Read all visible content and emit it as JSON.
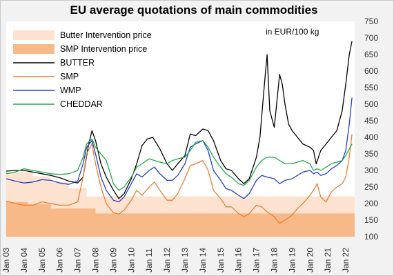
{
  "chart_data": {
    "type": "line",
    "title": "EU average quotations of main commodities",
    "unit_note": "in EUR/100 kg",
    "ylim": [
      100,
      750
    ],
    "yticks": [
      100,
      150,
      200,
      250,
      300,
      350,
      400,
      450,
      500,
      550,
      600,
      650,
      700,
      750
    ],
    "xlim": [
      2003.0,
      2022.5
    ],
    "xticks": [
      {
        "label": "Jan 03",
        "x": 2003
      },
      {
        "label": "Jan 04",
        "x": 2004
      },
      {
        "label": "Jan 05",
        "x": 2005
      },
      {
        "label": "Jan 06",
        "x": 2006
      },
      {
        "label": "Jan 07",
        "x": 2007
      },
      {
        "label": "Jan 08",
        "x": 2008
      },
      {
        "label": "Jan 09",
        "x": 2009
      },
      {
        "label": "Jan 10",
        "x": 2010
      },
      {
        "label": "Jan 11",
        "x": 2011
      },
      {
        "label": "Jan 12",
        "x": 2012
      },
      {
        "label": "Jan 13",
        "x": 2013
      },
      {
        "label": "Jan 14",
        "x": 2014
      },
      {
        "label": "Jan 15",
        "x": 2015
      },
      {
        "label": "Jan 16",
        "x": 2016
      },
      {
        "label": "Jan 17",
        "x": 2017
      },
      {
        "label": "Jan 18",
        "x": 2018
      },
      {
        "label": "Jan 19",
        "x": 2019
      },
      {
        "label": "Jan 20",
        "x": 2020
      },
      {
        "label": "Jan 21",
        "x": 2021
      },
      {
        "label": "Jan 22",
        "x": 2022
      }
    ],
    "legend": [
      {
        "key": "butter_int",
        "label": "Butter Intervention price",
        "kind": "area",
        "color": "#fde3cf"
      },
      {
        "key": "smp_int",
        "label": "SMP Intervention price",
        "kind": "area",
        "color": "#f8b988"
      },
      {
        "key": "butter",
        "label": "BUTTER",
        "kind": "line",
        "color": "#000000"
      },
      {
        "key": "smp",
        "label": "SMP",
        "kind": "line",
        "color": "#ed7d31"
      },
      {
        "key": "wmp",
        "label": "WMP",
        "kind": "line",
        "color": "#1f3fd0"
      },
      {
        "key": "cheddar",
        "label": "CHEDDAR",
        "kind": "line",
        "color": "#22aa44"
      }
    ],
    "areas": [
      {
        "key": "butter_int",
        "color": "#fde3cf",
        "x": [
          2003.0,
          2004.5,
          2004.5,
          2005.5,
          2005.5,
          2006.5,
          2006.5,
          2007.5,
          2007.5,
          2022.5
        ],
        "y": [
          295,
          295,
          282,
          282,
          264,
          264,
          246,
          246,
          222,
          222
        ]
      },
      {
        "key": "smp_int",
        "color": "#f8b988",
        "x": [
          2003.0,
          2004.2,
          2004.2,
          2005.5,
          2005.5,
          2008.0,
          2008.0,
          2022.5
        ],
        "y": [
          205,
          205,
          198,
          198,
          185,
          185,
          170,
          170
        ]
      }
    ],
    "series": [
      {
        "key": "butter",
        "color": "#000000",
        "x": [
          2003.0,
          2003.5,
          2004.0,
          2004.5,
          2005.0,
          2005.5,
          2006.0,
          2006.5,
          2007.0,
          2007.3,
          2007.6,
          2007.8,
          2008.0,
          2008.3,
          2008.6,
          2009.0,
          2009.3,
          2009.6,
          2010.0,
          2010.3,
          2010.6,
          2010.9,
          2011.2,
          2011.6,
          2012.0,
          2012.3,
          2012.6,
          2013.0,
          2013.3,
          2013.6,
          2014.0,
          2014.3,
          2014.6,
          2015.0,
          2015.3,
          2015.6,
          2016.0,
          2016.3,
          2016.6,
          2017.0,
          2017.2,
          2017.45,
          2017.6,
          2017.75,
          2018.0,
          2018.3,
          2018.45,
          2018.6,
          2018.8,
          2019.0,
          2019.3,
          2019.6,
          2020.0,
          2020.2,
          2020.35,
          2020.6,
          2020.9,
          2021.2,
          2021.5,
          2021.8,
          2022.0,
          2022.2,
          2022.35
        ],
        "y": [
          298,
          300,
          300,
          295,
          290,
          285,
          278,
          268,
          262,
          280,
          375,
          420,
          390,
          320,
          280,
          240,
          215,
          230,
          275,
          320,
          375,
          395,
          400,
          365,
          320,
          300,
          320,
          345,
          410,
          405,
          425,
          420,
          390,
          330,
          305,
          300,
          275,
          260,
          275,
          340,
          400,
          560,
          650,
          480,
          430,
          590,
          560,
          500,
          440,
          420,
          400,
          380,
          370,
          360,
          320,
          360,
          380,
          400,
          420,
          480,
          560,
          650,
          690
        ]
      },
      {
        "key": "smp",
        "color": "#ed7d31",
        "x": [
          2003.0,
          2003.5,
          2004.0,
          2004.5,
          2005.0,
          2005.5,
          2006.0,
          2006.5,
          2007.0,
          2007.3,
          2007.5,
          2007.8,
          2008.0,
          2008.3,
          2008.6,
          2009.0,
          2009.3,
          2009.6,
          2010.0,
          2010.3,
          2010.6,
          2011.0,
          2011.3,
          2011.6,
          2012.0,
          2012.3,
          2012.6,
          2013.0,
          2013.3,
          2013.6,
          2014.0,
          2014.3,
          2014.6,
          2015.0,
          2015.3,
          2015.6,
          2016.0,
          2016.3,
          2016.6,
          2017.0,
          2017.3,
          2017.6,
          2018.0,
          2018.3,
          2018.6,
          2019.0,
          2019.3,
          2019.6,
          2020.0,
          2020.2,
          2020.4,
          2020.6,
          2020.9,
          2021.2,
          2021.5,
          2021.8,
          2022.0,
          2022.2,
          2022.35
        ],
        "y": [
          208,
          200,
          195,
          195,
          205,
          200,
          195,
          195,
          205,
          280,
          350,
          380,
          320,
          250,
          200,
          172,
          168,
          180,
          210,
          240,
          225,
          250,
          265,
          240,
          210,
          210,
          230,
          275,
          315,
          320,
          330,
          300,
          240,
          215,
          190,
          190,
          170,
          160,
          170,
          195,
          190,
          175,
          160,
          140,
          150,
          165,
          185,
          200,
          225,
          240,
          260,
          220,
          205,
          235,
          250,
          260,
          280,
          340,
          410
        ]
      },
      {
        "key": "wmp",
        "color": "#1f3fd0",
        "x": [
          2003.0,
          2003.5,
          2004.0,
          2004.5,
          2005.0,
          2005.5,
          2006.0,
          2006.5,
          2007.0,
          2007.3,
          2007.5,
          2007.8,
          2008.0,
          2008.3,
          2008.6,
          2009.0,
          2009.3,
          2009.6,
          2010.0,
          2010.3,
          2010.6,
          2011.0,
          2011.3,
          2011.6,
          2012.0,
          2012.3,
          2012.6,
          2013.0,
          2013.3,
          2013.6,
          2014.0,
          2014.3,
          2014.6,
          2015.0,
          2015.3,
          2015.6,
          2016.0,
          2016.3,
          2016.6,
          2017.0,
          2017.3,
          2017.6,
          2018.0,
          2018.3,
          2018.6,
          2019.0,
          2019.3,
          2019.6,
          2020.0,
          2020.2,
          2020.4,
          2020.6,
          2020.9,
          2021.2,
          2021.5,
          2021.8,
          2022.0,
          2022.2,
          2022.35
        ],
        "y": [
          275,
          268,
          262,
          265,
          272,
          270,
          262,
          258,
          268,
          320,
          370,
          390,
          350,
          280,
          240,
          210,
          205,
          220,
          260,
          290,
          280,
          300,
          310,
          290,
          270,
          270,
          285,
          320,
          370,
          380,
          390,
          360,
          300,
          270,
          245,
          240,
          225,
          215,
          230,
          270,
          285,
          280,
          275,
          260,
          270,
          275,
          285,
          295,
          300,
          290,
          295,
          285,
          290,
          305,
          315,
          330,
          360,
          440,
          520
        ]
      },
      {
        "key": "cheddar",
        "color": "#22aa44",
        "x": [
          2003.0,
          2003.5,
          2004.0,
          2004.5,
          2005.0,
          2005.5,
          2006.0,
          2006.5,
          2007.0,
          2007.3,
          2007.5,
          2007.8,
          2008.0,
          2008.3,
          2008.6,
          2009.0,
          2009.3,
          2009.6,
          2010.0,
          2010.3,
          2010.6,
          2011.0,
          2011.3,
          2011.6,
          2012.0,
          2012.3,
          2012.6,
          2013.0,
          2013.3,
          2013.6,
          2014.0,
          2014.3,
          2014.6,
          2015.0,
          2015.3,
          2015.6,
          2016.0,
          2016.3,
          2016.6,
          2017.0,
          2017.3,
          2017.6,
          2018.0,
          2018.3,
          2018.6,
          2019.0,
          2019.3,
          2019.6,
          2020.0,
          2020.2,
          2020.4,
          2020.6,
          2020.9,
          2021.2,
          2021.5,
          2021.8,
          2022.0,
          2022.2,
          2022.35
        ],
        "y": [
          290,
          295,
          305,
          300,
          295,
          290,
          288,
          290,
          300,
          340,
          380,
          395,
          370,
          350,
          330,
          260,
          240,
          250,
          280,
          310,
          320,
          335,
          330,
          325,
          320,
          330,
          335,
          340,
          360,
          385,
          390,
          370,
          340,
          310,
          290,
          280,
          260,
          255,
          270,
          310,
          330,
          340,
          340,
          330,
          320,
          320,
          325,
          330,
          320,
          300,
          305,
          300,
          310,
          320,
          325,
          330,
          345,
          365,
          380
        ]
      }
    ]
  }
}
